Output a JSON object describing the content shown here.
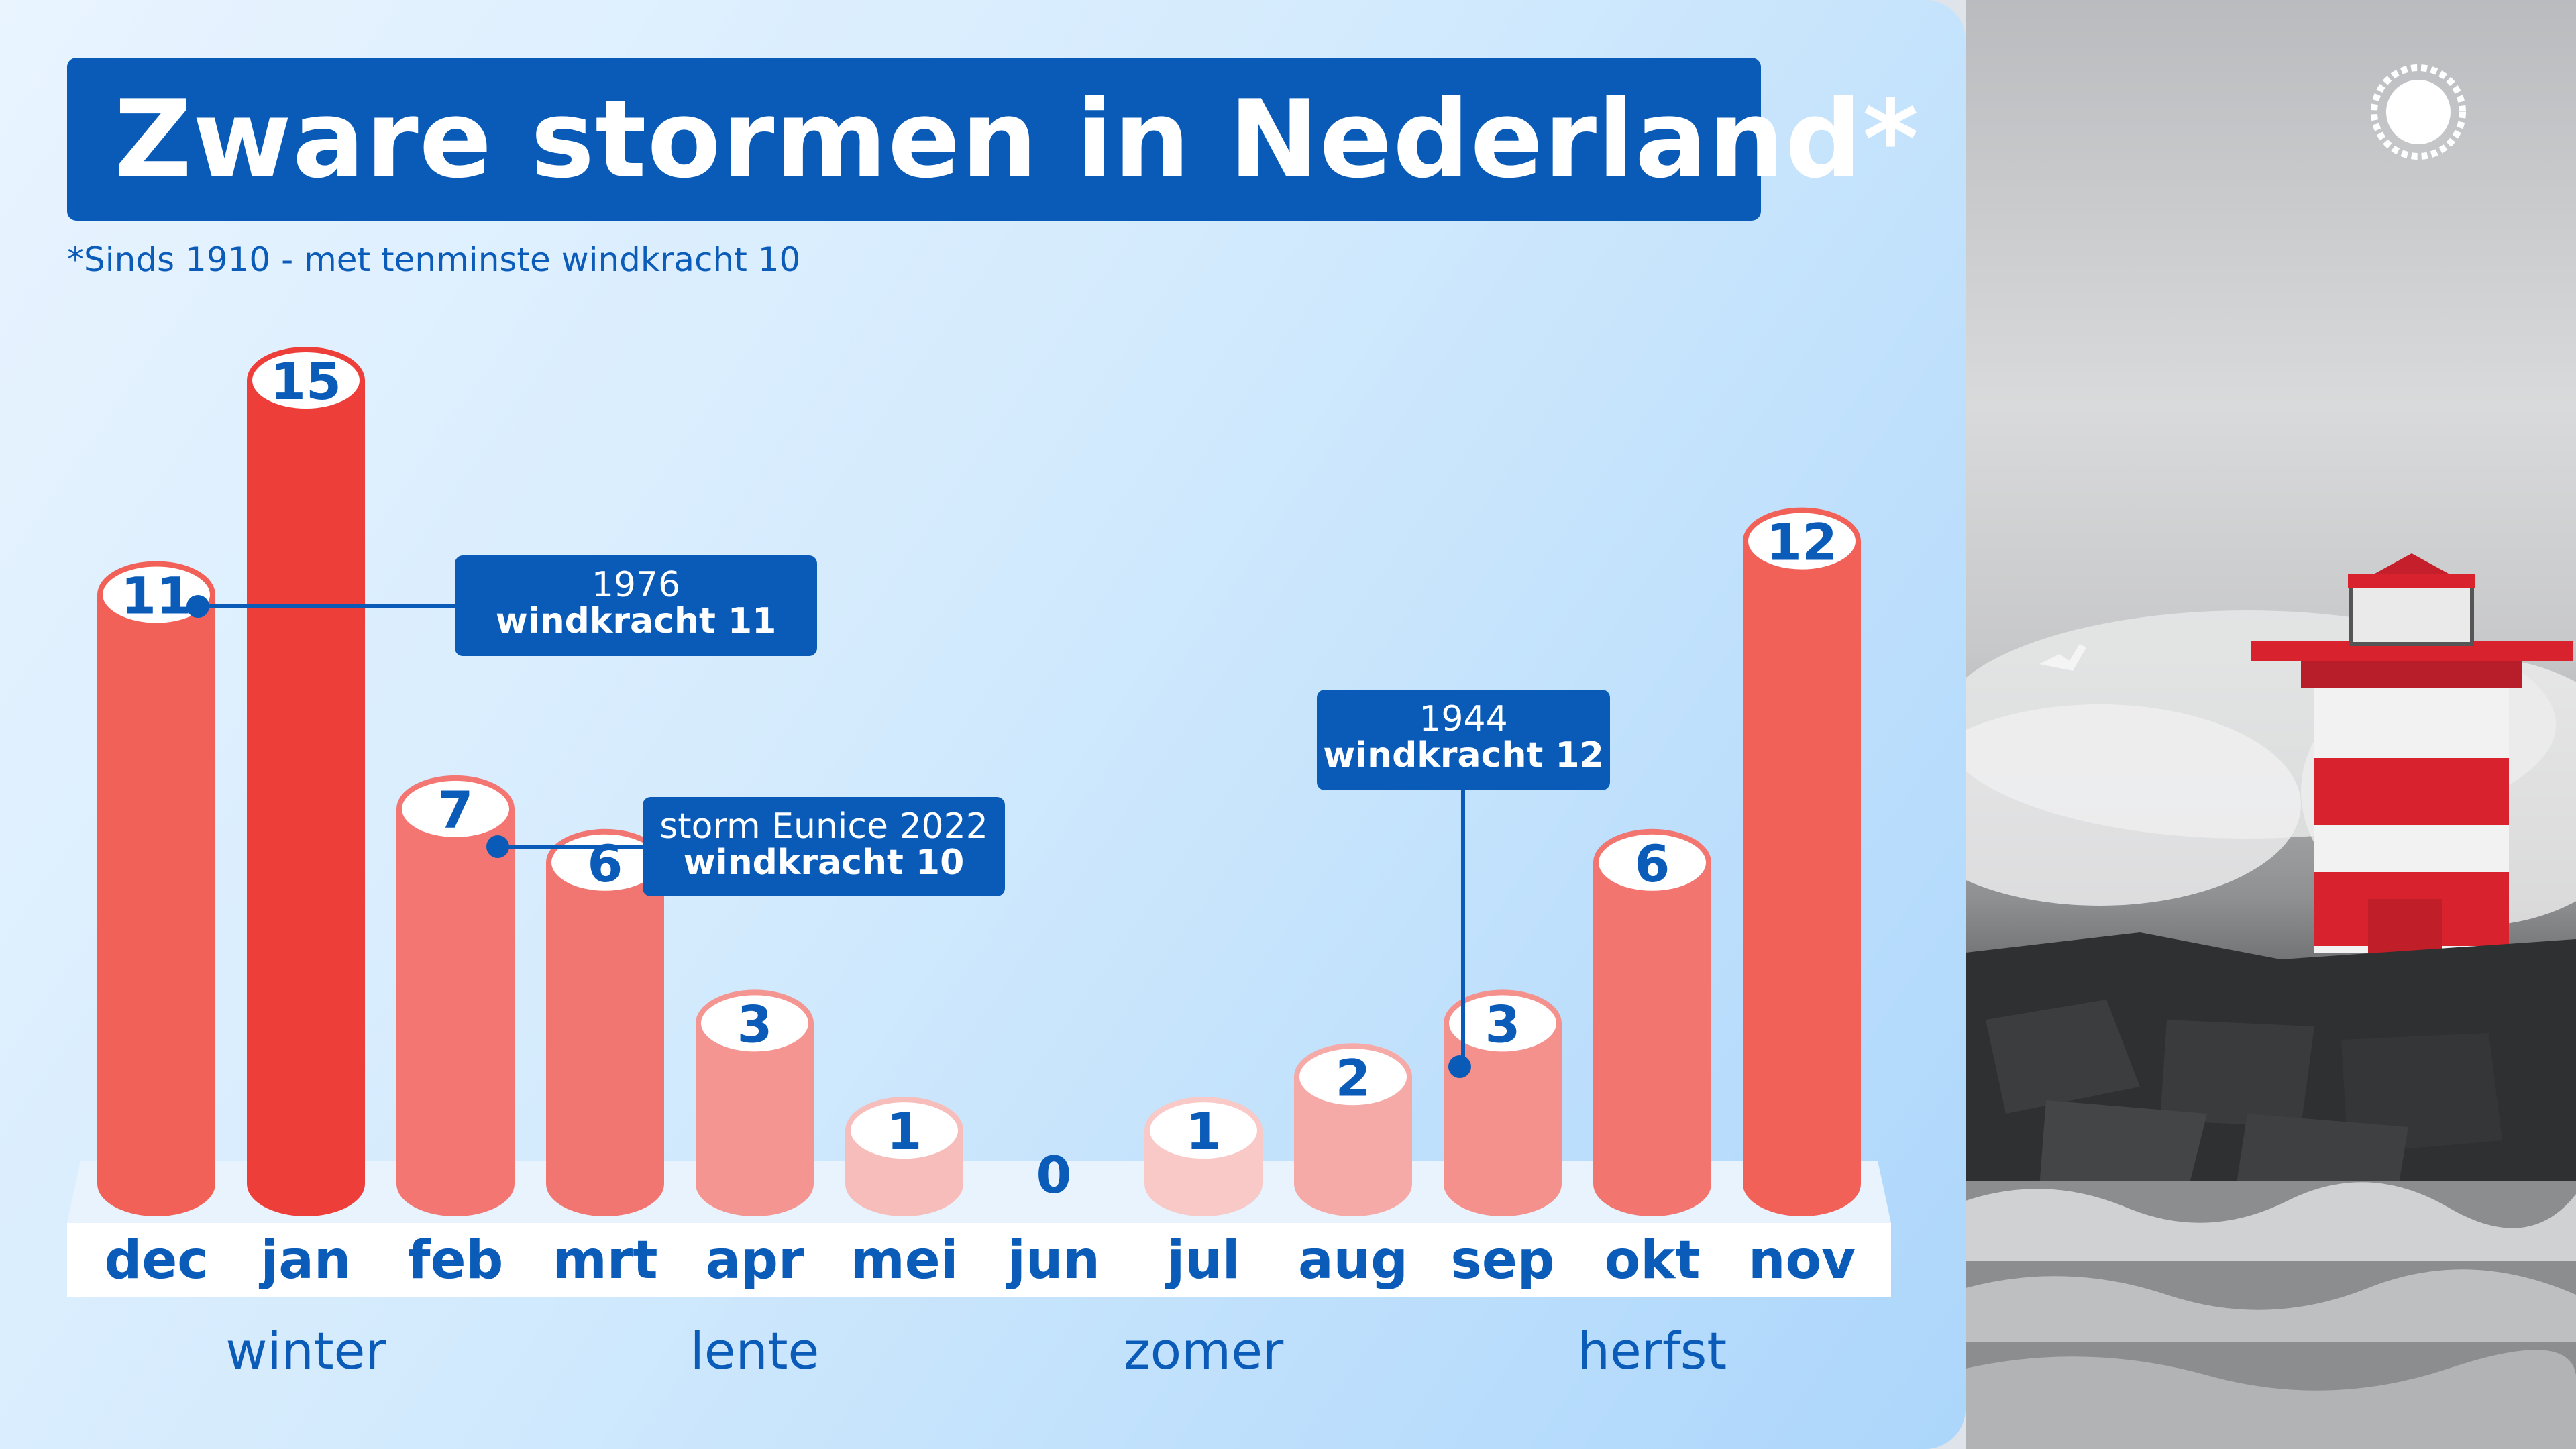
{
  "title": "Zware stormen in Nederland*",
  "subtitle": "*Sinds 1910 - met tenminste windkracht 10",
  "chart_data": {
    "type": "bar",
    "title": "Zware stormen in Nederland*",
    "subtitle": "*Sinds 1910 - met tenminste windkracht 10",
    "categories": [
      "dec",
      "jan",
      "feb",
      "mrt",
      "apr",
      "mei",
      "jun",
      "jul",
      "aug",
      "sep",
      "okt",
      "nov"
    ],
    "values": [
      11,
      15,
      7,
      6,
      3,
      1,
      0,
      1,
      2,
      3,
      6,
      12
    ],
    "ylim": [
      0,
      15
    ],
    "seasons": [
      {
        "name": "winter",
        "months": [
          "dec",
          "jan",
          "feb"
        ]
      },
      {
        "name": "lente",
        "months": [
          "mrt",
          "apr",
          "mei"
        ]
      },
      {
        "name": "zomer",
        "months": [
          "jun",
          "jul",
          "aug"
        ]
      },
      {
        "name": "herfst",
        "months": [
          "sep",
          "okt",
          "nov"
        ]
      }
    ],
    "annotations": [
      {
        "month": "dec",
        "line1": "1976",
        "line2": "windkracht 11"
      },
      {
        "month": "feb",
        "line1": "storm Eunice 2022",
        "line2": "windkracht 10"
      },
      {
        "month": "sep",
        "line1": "1944",
        "line2": "windkracht 12"
      }
    ]
  },
  "colors": {
    "accent": "#0a5bb8",
    "label": "#0b5cb8",
    "bars": [
      "#f26158",
      "#ee3e3a",
      "#f47672",
      "#f17570",
      "#f59591",
      "#f7bdbb",
      "#f8c9c7",
      "#f8c9c7",
      "#f6aaa7",
      "#f5918d",
      "#f37570",
      "#f26158"
    ],
    "tops": [
      "#fbd7d5",
      "#fbd7d5",
      "#fce0de",
      "#fce0de",
      "#fde6e5",
      "#fdeeee",
      "#fdeeee",
      "#fdeeee",
      "#fde6e5",
      "#fde6e5",
      "#fce0de",
      "#fbd7d5"
    ]
  },
  "logo_icon": "sun-icon"
}
